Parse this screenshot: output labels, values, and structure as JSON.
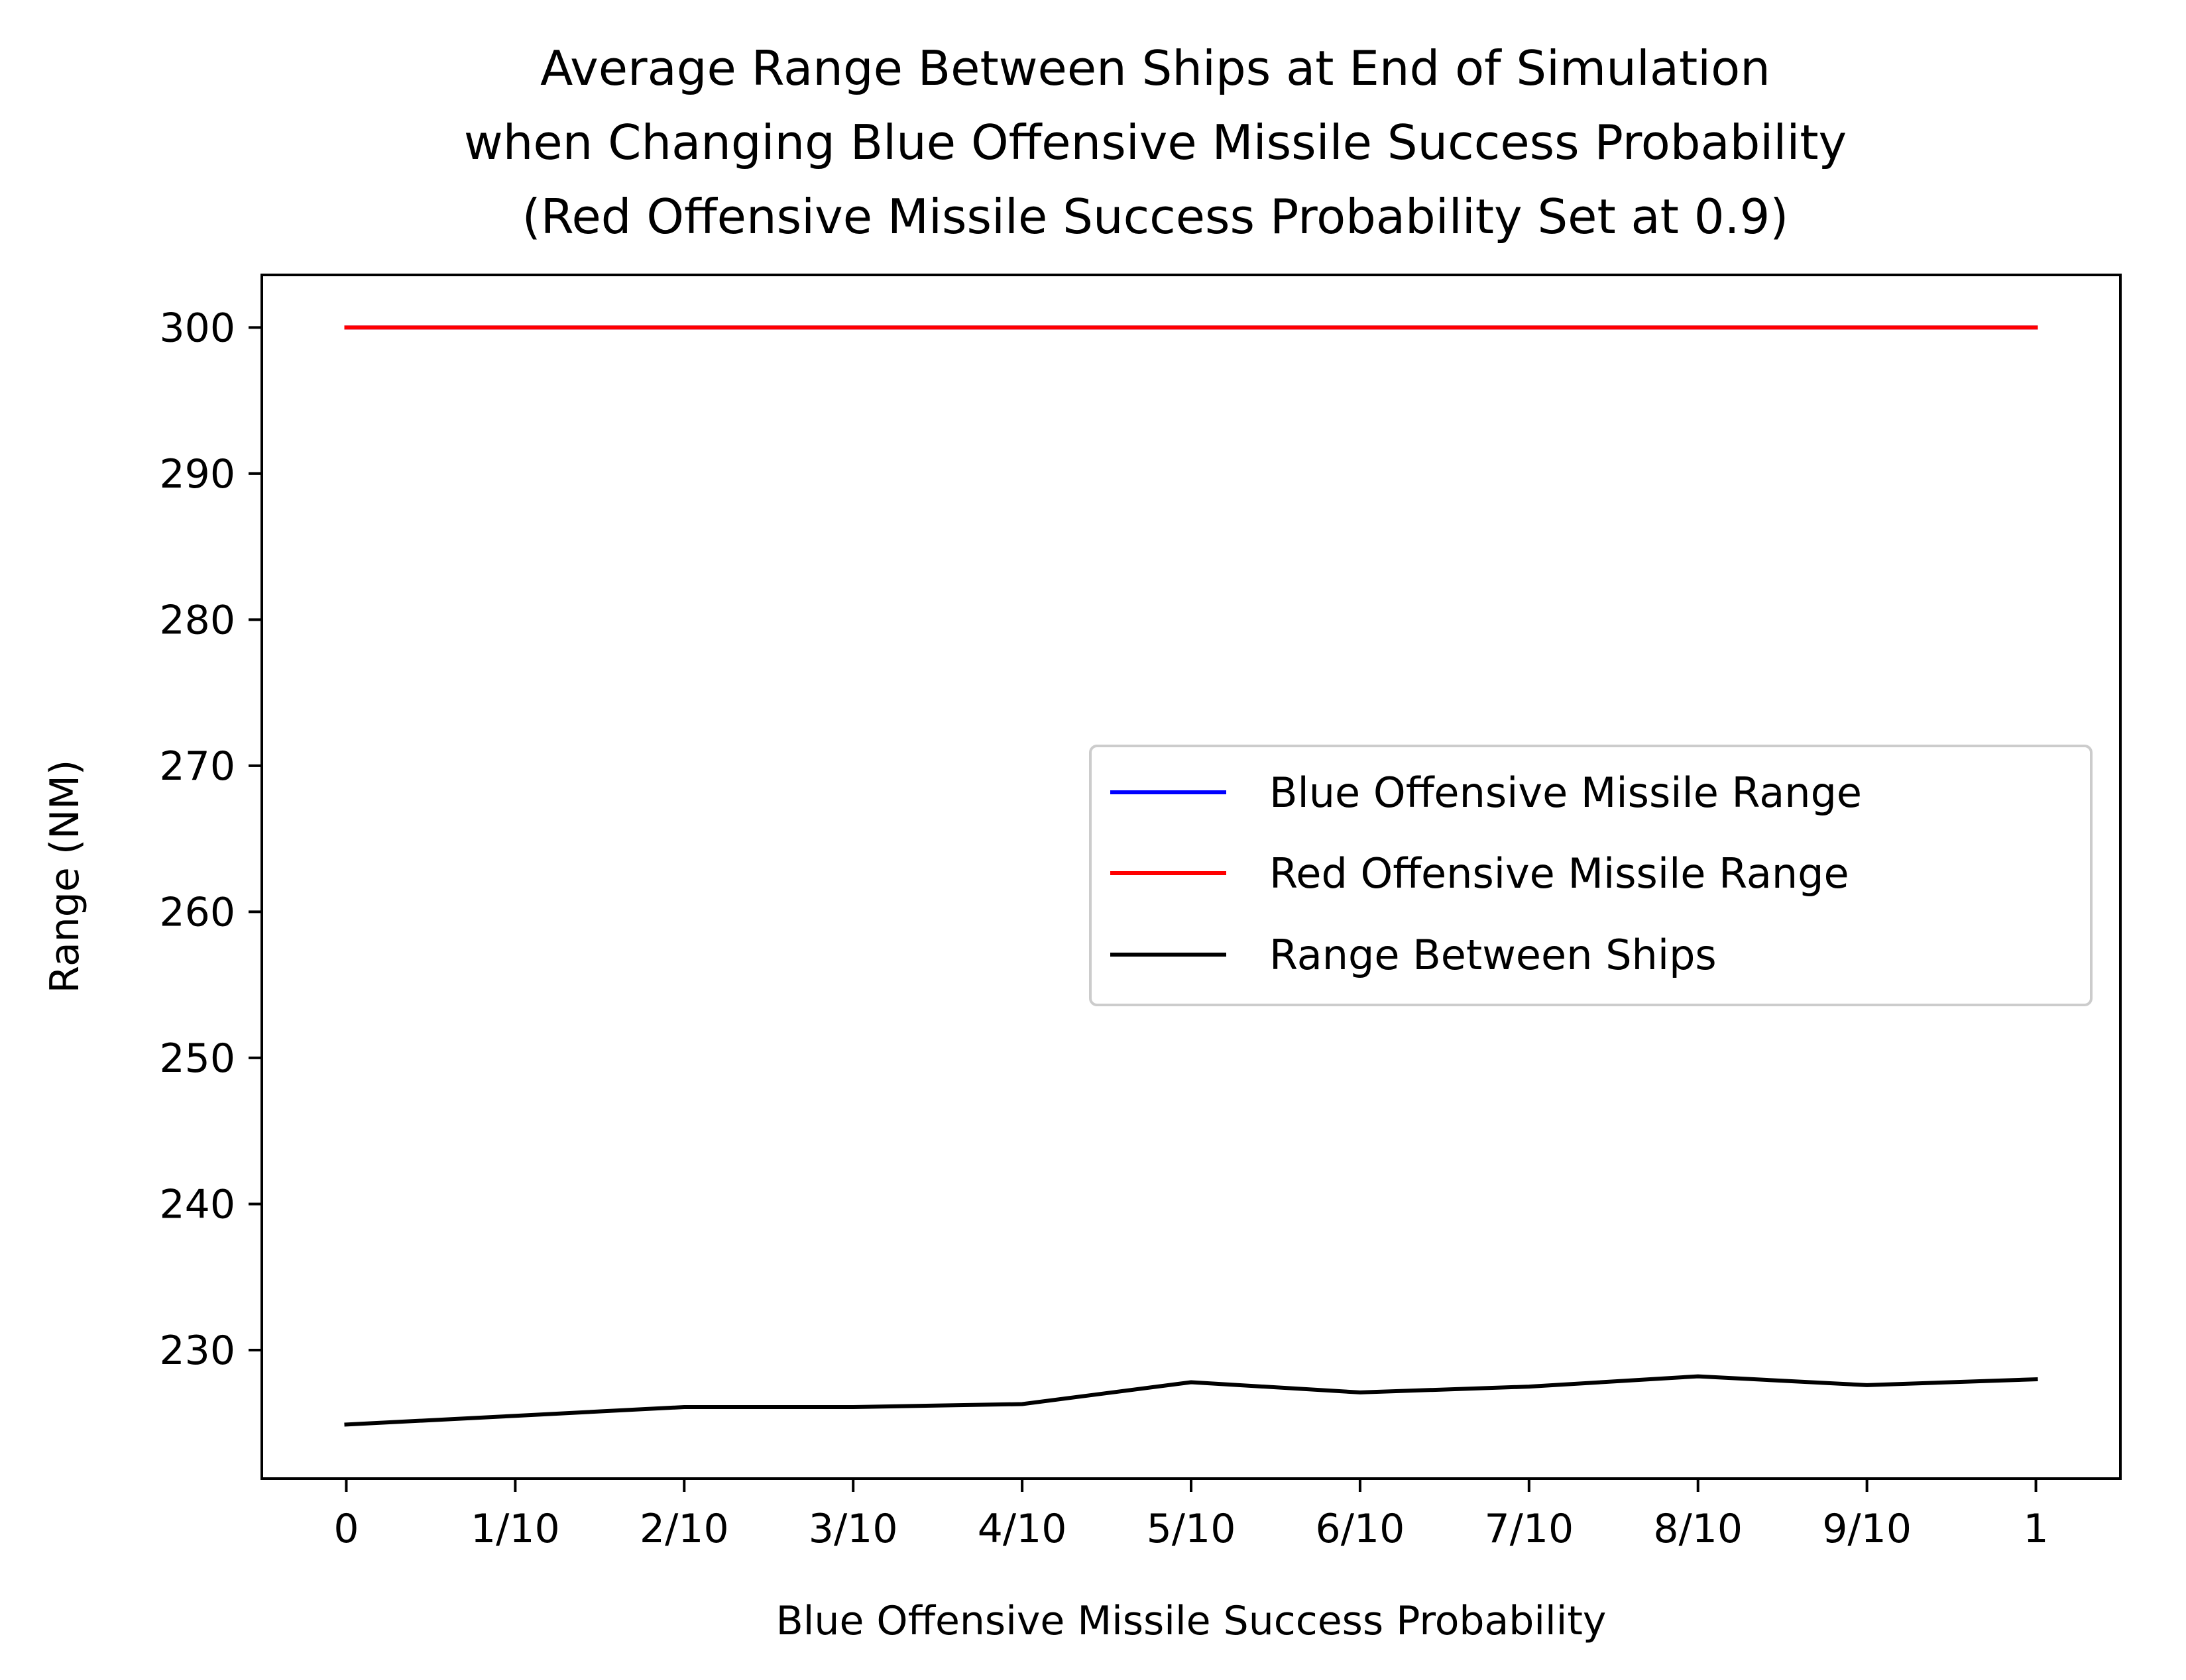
{
  "chart_data": {
    "type": "line",
    "title_lines": [
      "Average Range Between Ships at End of Simulation",
      "when Changing Blue Offensive Missile Success Probability",
      "(Red Offensive Missile Success Probability Set at 0.9)"
    ],
    "xlabel": "Blue Offensive Missile Success Probability",
    "ylabel": "Range (NM)",
    "categories": [
      "0",
      "1/10",
      "2/10",
      "3/10",
      "4/10",
      "5/10",
      "6/10",
      "7/10",
      "8/10",
      "9/10",
      "1"
    ],
    "x": [
      0,
      0.1,
      0.2,
      0.3,
      0.4,
      0.5,
      0.6,
      0.7,
      0.8,
      0.9,
      1.0
    ],
    "xlim": [
      -0.05,
      1.05
    ],
    "ylim": [
      221.2,
      303.6
    ],
    "yticks": [
      230,
      240,
      250,
      260,
      270,
      280,
      290,
      300
    ],
    "grid": false,
    "legend_position": "center-right",
    "series": [
      {
        "name": "Blue Offensive Missile Range",
        "color": "#0000ff",
        "values": [
          300,
          300,
          300,
          300,
          300,
          300,
          300,
          300,
          300,
          300,
          300
        ]
      },
      {
        "name": "Red Offensive Missile Range",
        "color": "#ff0000",
        "values": [
          300,
          300,
          300,
          300,
          300,
          300,
          300,
          300,
          300,
          300,
          300
        ]
      },
      {
        "name": "Range Between Ships",
        "color": "#000000",
        "values": [
          224.9,
          225.5,
          226.1,
          226.1,
          226.3,
          227.8,
          227.1,
          227.5,
          228.2,
          227.6,
          228.0
        ]
      }
    ]
  }
}
